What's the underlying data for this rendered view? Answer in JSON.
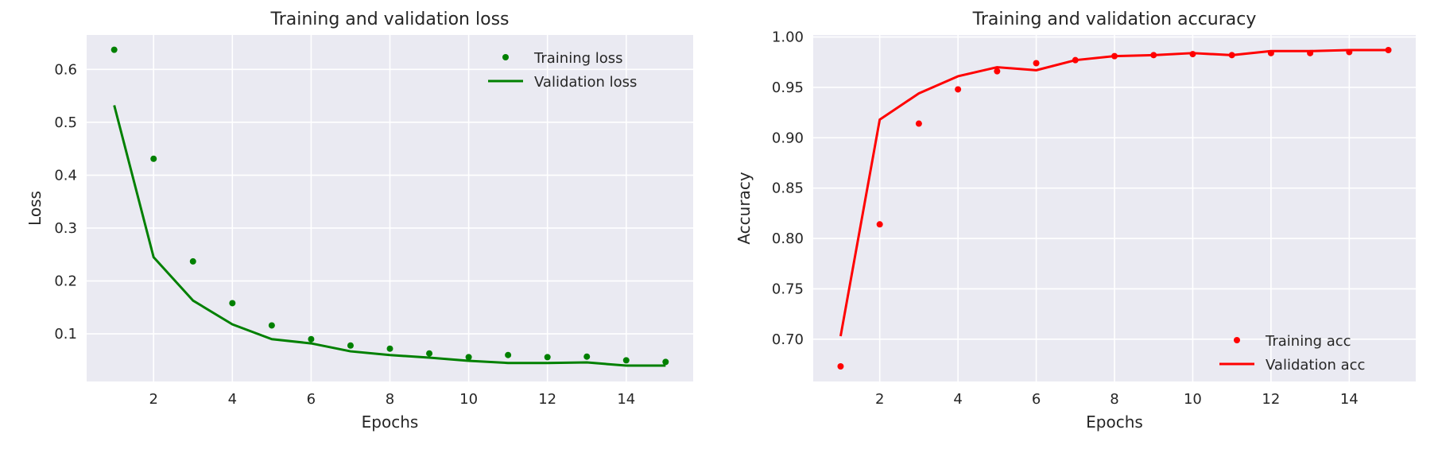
{
  "chart_data": [
    {
      "type": "line",
      "title": "Training and validation loss",
      "xlabel": "Epochs",
      "ylabel": "Loss",
      "x": [
        1,
        2,
        3,
        4,
        5,
        6,
        7,
        8,
        9,
        10,
        11,
        12,
        13,
        14,
        15
      ],
      "xlim": [
        0.3,
        15.7
      ],
      "ylim": [
        0.01,
        0.665
      ],
      "xticks": [
        2,
        4,
        6,
        8,
        10,
        12,
        14
      ],
      "yticks": [
        0.1,
        0.2,
        0.3,
        0.4,
        0.5,
        0.6
      ],
      "grid": true,
      "legend_position": "top-right",
      "series": [
        {
          "name": "Training loss",
          "style": "dots",
          "color": "#008000",
          "values": [
            0.637,
            0.431,
            0.237,
            0.158,
            0.116,
            0.09,
            0.078,
            0.072,
            0.063,
            0.056,
            0.06,
            0.056,
            0.057,
            0.05,
            0.047
          ]
        },
        {
          "name": "Validation loss",
          "style": "line",
          "color": "#008000",
          "values": [
            0.532,
            0.245,
            0.163,
            0.118,
            0.09,
            0.082,
            0.067,
            0.06,
            0.055,
            0.049,
            0.045,
            0.045,
            0.046,
            0.04,
            0.04
          ]
        }
      ]
    },
    {
      "type": "line",
      "title": "Training and validation accuracy",
      "xlabel": "Epochs",
      "ylabel": "Accuracy",
      "x": [
        1,
        2,
        3,
        4,
        5,
        6,
        7,
        8,
        9,
        10,
        11,
        12,
        13,
        14,
        15
      ],
      "xlim": [
        0.3,
        15.7
      ],
      "ylim": [
        0.658,
        1.002
      ],
      "xticks": [
        2,
        4,
        6,
        8,
        10,
        12,
        14
      ],
      "yticks": [
        0.7,
        0.75,
        0.8,
        0.85,
        0.9,
        0.95,
        1.0
      ],
      "ytick_decimals": 2,
      "grid": true,
      "legend_position": "bottom-right",
      "series": [
        {
          "name": "Training acc",
          "style": "dots",
          "color": "#ff0000",
          "values": [
            0.673,
            0.814,
            0.914,
            0.948,
            0.966,
            0.974,
            0.977,
            0.981,
            0.982,
            0.983,
            0.982,
            0.984,
            0.984,
            0.985,
            0.987
          ]
        },
        {
          "name": "Validation acc",
          "style": "line",
          "color": "#ff0000",
          "values": [
            0.703,
            0.918,
            0.944,
            0.961,
            0.97,
            0.967,
            0.977,
            0.981,
            0.982,
            0.984,
            0.982,
            0.986,
            0.986,
            0.987,
            0.987
          ]
        }
      ]
    }
  ]
}
